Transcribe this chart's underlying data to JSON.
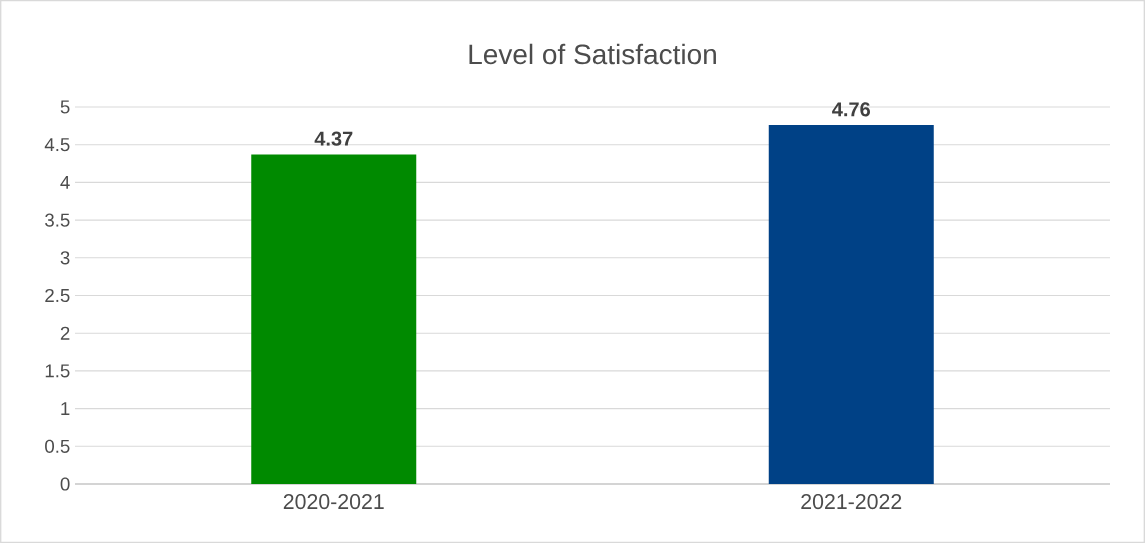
{
  "chart_data": {
    "type": "bar",
    "title": "Level of Satisfaction",
    "categories": [
      "2020-2021",
      "2021-2022"
    ],
    "values": [
      4.37,
      4.76
    ],
    "colors": [
      "#008a00",
      "#004186"
    ],
    "ylim": [
      0,
      5
    ],
    "yticks": [
      0,
      0.5,
      1,
      1.5,
      2,
      2.5,
      3,
      3.5,
      4,
      4.5,
      5
    ],
    "grid": "y",
    "data_labels": true
  }
}
